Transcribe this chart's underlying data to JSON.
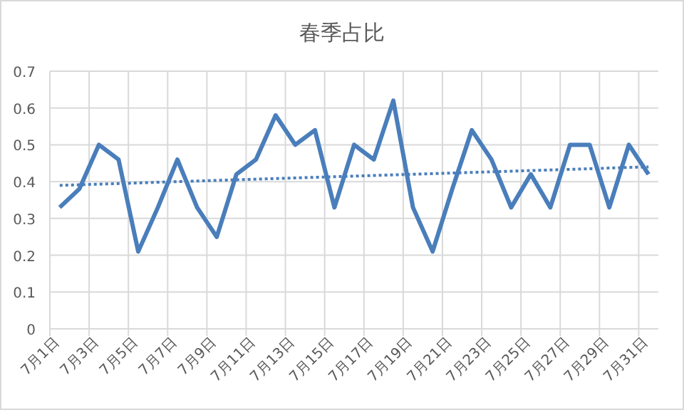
{
  "chart_data": {
    "type": "line",
    "title": "春季占比",
    "categories": [
      "7月1日",
      null,
      "7月3日",
      null,
      "7月5日",
      null,
      "7月7日",
      null,
      "7月9日",
      null,
      "7月11日",
      null,
      "7月13日",
      null,
      "7月15日",
      null,
      "7月17日",
      null,
      "7月19日",
      null,
      "7月21日",
      null,
      "7月23日",
      null,
      "7月25日",
      null,
      "7月27日",
      null,
      "7月29日",
      null,
      "7月31日"
    ],
    "series": [
      {
        "color": "#4a7ebb",
        "values": [
          0.33,
          0.38,
          0.5,
          0.46,
          0.21,
          0.33,
          0.46,
          0.33,
          0.25,
          0.42,
          0.46,
          0.58,
          0.5,
          0.54,
          0.33,
          0.5,
          0.46,
          0.62,
          0.33,
          0.21,
          0.38,
          0.54,
          0.46,
          0.33,
          0.42,
          0.33,
          0.5,
          0.5,
          0.33,
          0.5,
          0.42
        ]
      },
      {
        "type": "line",
        "color": "#4a7ebb",
        "line_style": "dotted",
        "x": [
          "7月1日",
          "7月31日"
        ],
        "values": [
          0.39,
          0.44
        ]
      }
    ],
    "ylim": [
      0,
      0.7
    ],
    "yticks": [
      0,
      0.1,
      0.2,
      0.3,
      0.4,
      0.5,
      0.6,
      0.7
    ],
    "grid": true
  }
}
